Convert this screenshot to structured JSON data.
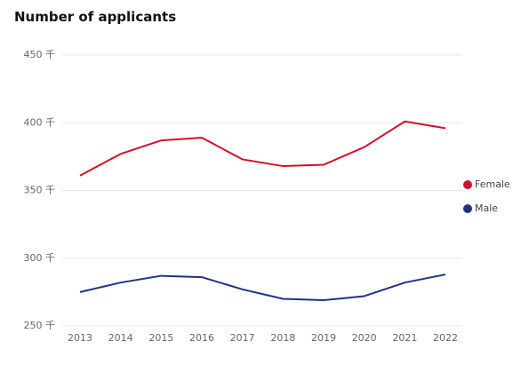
{
  "chart_data": {
    "type": "line",
    "title": "Number of applicants",
    "categories": [
      "2013",
      "2014",
      "2015",
      "2016",
      "2017",
      "2018",
      "2019",
      "2020",
      "2021",
      "2022"
    ],
    "series": [
      {
        "name": "Female",
        "color": "#d0102b",
        "values": [
          361,
          377,
          387,
          389,
          373,
          368,
          369,
          382,
          401,
          396
        ]
      },
      {
        "name": "Male",
        "color": "#1f3189",
        "values": [
          275,
          282,
          287,
          286,
          277,
          270,
          269,
          272,
          282,
          288
        ]
      }
    ],
    "ylim": [
      250,
      450
    ],
    "yticks": [
      {
        "value": 250,
        "label": "250 千"
      },
      {
        "value": 300,
        "label": "300 千"
      },
      {
        "value": 350,
        "label": "350 千"
      },
      {
        "value": 400,
        "label": "400 千"
      },
      {
        "value": 450,
        "label": "450 千"
      }
    ],
    "grid": true,
    "legend": "right"
  }
}
